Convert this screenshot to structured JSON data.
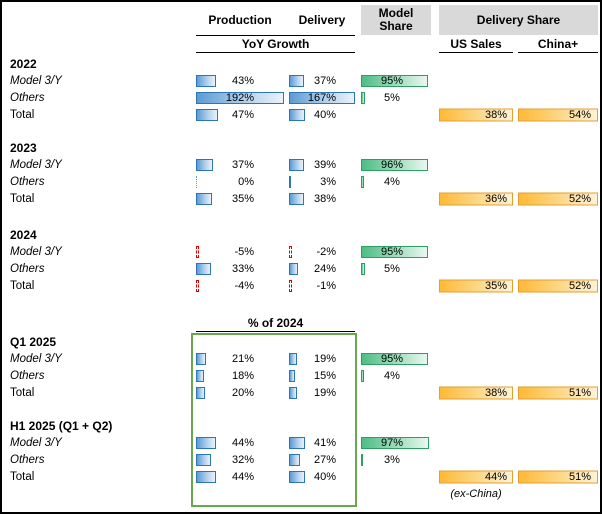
{
  "header": {
    "production": "Production",
    "delivery": "Delivery",
    "model_share": "Model Share",
    "delivery_share": "Delivery Share",
    "yoy_growth": "YoY Growth",
    "us_sales": "US Sales",
    "china_plus": "China+"
  },
  "footnote": "(ex-China)",
  "colors": {
    "blue_bar": "#5b9bd5",
    "blue_bar_border": "#2e75b6",
    "green_bar": "#4dbd85",
    "green_bar_border": "#2f9e62",
    "orange_bar": "#ffb937",
    "orange_bar_border": "#e3a02f",
    "negative_bar_red": "#e00000",
    "header_background": "#d9d9d9",
    "highlight_box_green": "#6aa84f"
  },
  "chart_data": {
    "type": "table",
    "columns": [
      "Production (YoY Growth)",
      "Delivery (YoY Growth)",
      "Model Share",
      "Delivery Share US Sales",
      "Delivery Share China+"
    ],
    "bar_scale_max": {
      "production": 192,
      "delivery": 167,
      "model_share": 100
    },
    "groups": [
      {
        "label": "2022",
        "rows": [
          {
            "label": "Model 3/Y",
            "italic": true,
            "production": "43%",
            "delivery": "37%",
            "model_share": "95%"
          },
          {
            "label": "Others",
            "italic": true,
            "production": "192%",
            "delivery": "167%",
            "model_share": "5%"
          },
          {
            "label": "Total",
            "italic": false,
            "production": "47%",
            "delivery": "40%",
            "us_sales": "38%",
            "china_plus": "54%"
          }
        ]
      },
      {
        "label": "2023",
        "rows": [
          {
            "label": "Model 3/Y",
            "italic": true,
            "production": "37%",
            "delivery": "39%",
            "model_share": "96%"
          },
          {
            "label": "Others",
            "italic": true,
            "production": "0%",
            "delivery": "3%",
            "model_share": "4%"
          },
          {
            "label": "Total",
            "italic": false,
            "production": "35%",
            "delivery": "38%",
            "us_sales": "36%",
            "china_plus": "52%"
          }
        ]
      },
      {
        "label": "2024",
        "rows": [
          {
            "label": "Model 3/Y",
            "italic": true,
            "production": "-5%",
            "delivery": "-2%",
            "model_share": "95%"
          },
          {
            "label": "Others",
            "italic": true,
            "production": "33%",
            "delivery": "24%",
            "model_share": "5%"
          },
          {
            "label": "Total",
            "italic": false,
            "production": "-4%",
            "delivery": "-1%",
            "us_sales": "35%",
            "china_plus": "52%"
          }
        ]
      },
      {
        "label": "Q1 2025",
        "section_header": "% of 2024",
        "rows": [
          {
            "label": "Model 3/Y",
            "italic": true,
            "production": "21%",
            "delivery": "19%",
            "model_share": "95%"
          },
          {
            "label": "Others",
            "italic": true,
            "production": "18%",
            "delivery": "15%",
            "model_share": "4%"
          },
          {
            "label": "Total",
            "italic": false,
            "production": "20%",
            "delivery": "19%",
            "us_sales": "38%",
            "china_plus": "51%"
          }
        ]
      },
      {
        "label": "H1 2025 (Q1 + Q2)",
        "rows": [
          {
            "label": "Model 3/Y",
            "italic": true,
            "production": "44%",
            "delivery": "41%",
            "model_share": "97%"
          },
          {
            "label": "Others",
            "italic": true,
            "production": "32%",
            "delivery": "27%",
            "model_share": "3%"
          },
          {
            "label": "Total",
            "italic": false,
            "production": "44%",
            "delivery": "40%",
            "us_sales": "44%",
            "china_plus": "51%"
          }
        ]
      }
    ]
  }
}
